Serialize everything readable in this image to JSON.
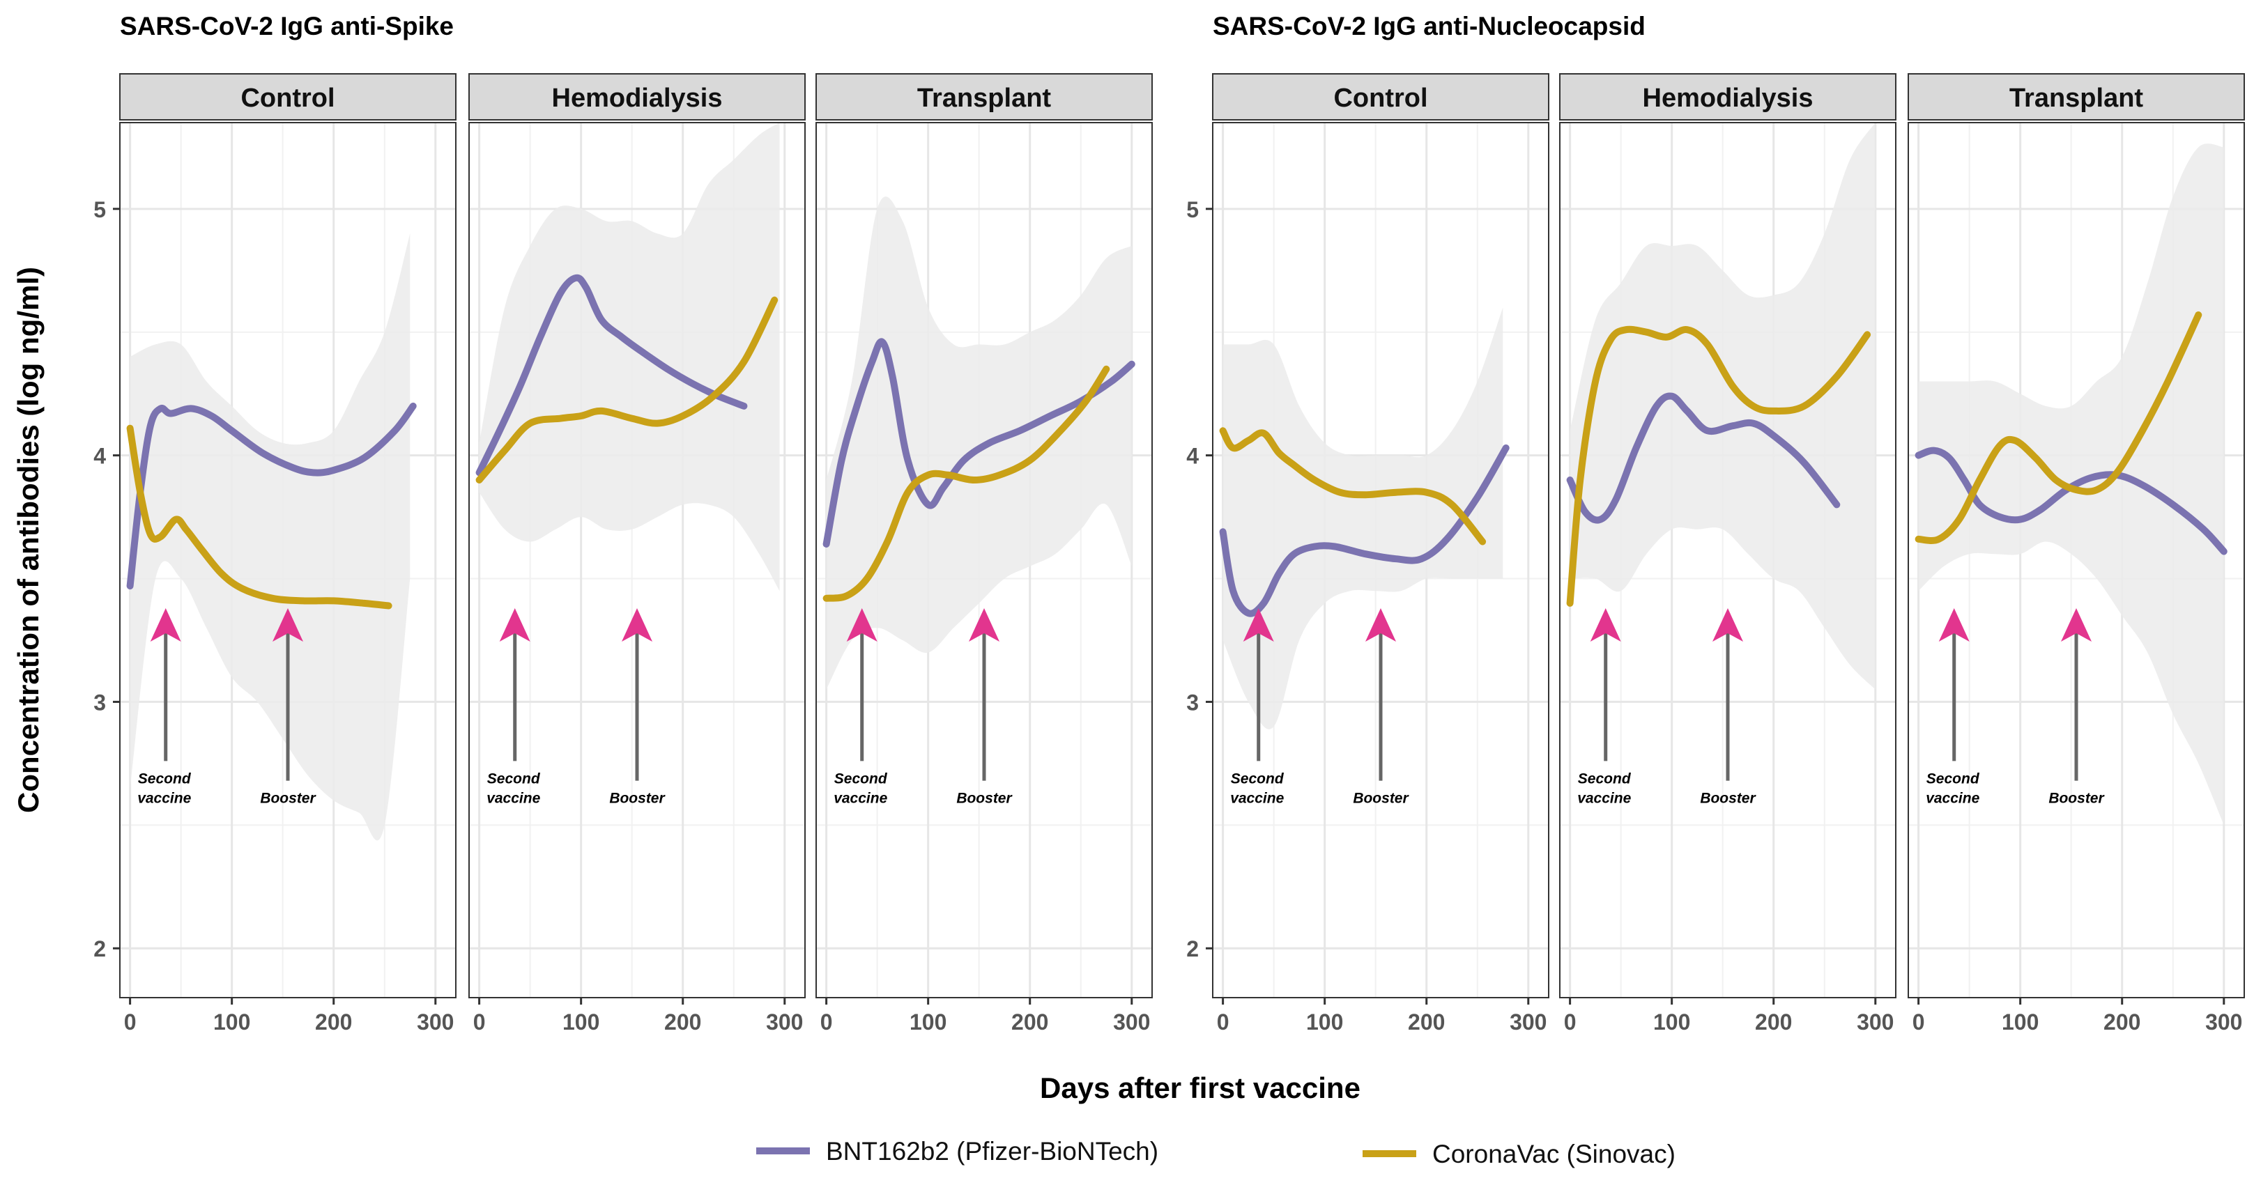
{
  "chart_data": [
    {
      "type": "line",
      "title": "SARS-CoV-2 IgG anti-Spike",
      "ylabel": "Concentration of antibodies (log ng/ml)",
      "xlabel": "Days after first vaccine",
      "xlim": [
        -10,
        320
      ],
      "ylim": [
        1.8,
        5.35
      ],
      "xticks": [
        0,
        100,
        200,
        300
      ],
      "yticks": [
        2,
        3,
        4,
        5
      ],
      "panels": [
        {
          "label": "Control",
          "band": {
            "x": [
              0,
              25,
              50,
              75,
              100,
              125,
              150,
              175,
              200,
              225,
              250,
              275
            ],
            "lo": [
              2.65,
              3.5,
              3.5,
              3.3,
              3.1,
              3.0,
              2.85,
              2.7,
              2.6,
              2.55,
              2.5,
              3.5
            ],
            "hi": [
              4.4,
              4.45,
              4.45,
              4.3,
              4.2,
              4.1,
              4.05,
              4.05,
              4.1,
              4.3,
              4.5,
              4.9
            ]
          },
          "series": [
            {
              "name": "BNT162b2 (Pfizer-BioNTech)",
              "x": [
                0,
                10,
                20,
                30,
                40,
                60,
                80,
                100,
                130,
                160,
                180,
                200,
                230,
                260,
                278
              ],
              "y": [
                3.47,
                3.85,
                4.12,
                4.19,
                4.17,
                4.19,
                4.16,
                4.1,
                4.01,
                3.95,
                3.93,
                3.94,
                3.99,
                4.1,
                4.2
              ]
            },
            {
              "name": "CoronaVac (Sinovac)",
              "x": [
                0,
                10,
                20,
                30,
                45,
                55,
                70,
                90,
                110,
                140,
                170,
                200,
                230,
                254
              ],
              "y": [
                4.11,
                3.85,
                3.68,
                3.67,
                3.74,
                3.7,
                3.62,
                3.52,
                3.46,
                3.42,
                3.41,
                3.41,
                3.4,
                3.39
              ]
            }
          ],
          "arrows": [
            {
              "x": 35,
              "label_line1": "Second",
              "label_line2": "vaccine"
            },
            {
              "x": 155,
              "label_line1": "Booster",
              "label_line2": ""
            }
          ]
        },
        {
          "label": "Hemodialysis",
          "band": {
            "x": [
              0,
              25,
              50,
              75,
              100,
              125,
              150,
              175,
              200,
              225,
              250,
              275,
              295
            ],
            "lo": [
              3.85,
              3.7,
              3.65,
              3.7,
              3.75,
              3.7,
              3.7,
              3.75,
              3.8,
              3.8,
              3.75,
              3.6,
              3.45
            ],
            "hi": [
              4.05,
              4.6,
              4.85,
              5.0,
              5.0,
              4.95,
              4.95,
              4.9,
              4.9,
              5.1,
              5.2,
              5.3,
              5.35
            ]
          },
          "series": [
            {
              "name": "BNT162b2 (Pfizer-BioNTech)",
              "x": [
                0,
                20,
                40,
                60,
                80,
                95,
                105,
                120,
                140,
                160,
                185,
                210,
                235,
                260
              ],
              "y": [
                3.93,
                4.1,
                4.28,
                4.48,
                4.66,
                4.72,
                4.68,
                4.55,
                4.48,
                4.42,
                4.35,
                4.29,
                4.24,
                4.2
              ]
            },
            {
              "name": "CoronaVac (Sinovac)",
              "x": [
                0,
                25,
                50,
                80,
                100,
                120,
                150,
                175,
                200,
                230,
                260,
                290
              ],
              "y": [
                3.9,
                4.02,
                4.13,
                4.15,
                4.16,
                4.18,
                4.15,
                4.13,
                4.16,
                4.24,
                4.38,
                4.63
              ]
            }
          ],
          "arrows": [
            {
              "x": 35,
              "label_line1": "Second",
              "label_line2": "vaccine"
            },
            {
              "x": 155,
              "label_line1": "Booster",
              "label_line2": ""
            }
          ]
        },
        {
          "label": "Transplant",
          "band": {
            "x": [
              0,
              25,
              50,
              75,
              100,
              125,
              150,
              175,
              200,
              225,
              250,
              275,
              300
            ],
            "lo": [
              3.05,
              3.25,
              3.3,
              3.25,
              3.2,
              3.3,
              3.4,
              3.5,
              3.55,
              3.6,
              3.7,
              3.8,
              3.55
            ],
            "hi": [
              3.9,
              4.3,
              5.0,
              4.95,
              4.6,
              4.45,
              4.45,
              4.45,
              4.5,
              4.55,
              4.65,
              4.8,
              4.85
            ]
          },
          "series": [
            {
              "name": "BNT162b2 (Pfizer-BioNTech)",
              "x": [
                0,
                15,
                30,
                45,
                55,
                65,
                80,
                100,
                115,
                135,
                160,
                190,
                220,
                250,
                280,
                300
              ],
              "y": [
                3.64,
                3.98,
                4.2,
                4.38,
                4.46,
                4.32,
                3.98,
                3.8,
                3.87,
                3.98,
                4.05,
                4.1,
                4.16,
                4.22,
                4.3,
                4.37
              ]
            },
            {
              "name": "CoronaVac (Sinovac)",
              "x": [
                0,
                20,
                40,
                60,
                80,
                100,
                120,
                145,
                170,
                200,
                230,
                255,
                275
              ],
              "y": [
                3.42,
                3.43,
                3.5,
                3.65,
                3.85,
                3.92,
                3.92,
                3.9,
                3.92,
                3.98,
                4.1,
                4.22,
                4.35
              ]
            }
          ],
          "arrows": [
            {
              "x": 35,
              "label_line1": "Second",
              "label_line2": "vaccine"
            },
            {
              "x": 155,
              "label_line1": "Booster",
              "label_line2": ""
            }
          ]
        }
      ]
    },
    {
      "type": "line",
      "title": "SARS-CoV-2 IgG anti-Nucleocapsid",
      "ylabel": "Concentration of antibodies (log ng/ml)",
      "xlabel": "Days after first vaccine",
      "xlim": [
        -10,
        320
      ],
      "ylim": [
        1.8,
        5.35
      ],
      "xticks": [
        0,
        100,
        200,
        300
      ],
      "yticks": [
        2,
        3,
        4,
        5
      ],
      "panels": [
        {
          "label": "Control",
          "band": {
            "x": [
              0,
              25,
              50,
              75,
              100,
              125,
              150,
              175,
              200,
              225,
              250,
              275
            ],
            "lo": [
              3.25,
              3.0,
              2.9,
              3.25,
              3.4,
              3.45,
              3.45,
              3.45,
              3.5,
              3.5,
              3.5,
              3.5
            ],
            "hi": [
              4.45,
              4.45,
              4.45,
              4.2,
              4.05,
              4.0,
              4.0,
              4.0,
              4.0,
              4.1,
              4.3,
              4.6
            ]
          },
          "series": [
            {
              "name": "BNT162b2 (Pfizer-BioNTech)",
              "x": [
                0,
                10,
                25,
                40,
                55,
                70,
                90,
                110,
                140,
                170,
                195,
                220,
                250,
                278
              ],
              "y": [
                3.69,
                3.45,
                3.36,
                3.4,
                3.52,
                3.6,
                3.63,
                3.63,
                3.6,
                3.58,
                3.58,
                3.66,
                3.83,
                4.03
              ]
            },
            {
              "name": "CoronaVac (Sinovac)",
              "x": [
                0,
                10,
                25,
                40,
                55,
                70,
                90,
                115,
                140,
                170,
                200,
                225,
                255
              ],
              "y": [
                4.1,
                4.03,
                4.06,
                4.09,
                4.01,
                3.96,
                3.9,
                3.85,
                3.84,
                3.85,
                3.85,
                3.8,
                3.65
              ]
            }
          ],
          "arrows": [
            {
              "x": 35,
              "label_line1": "Second",
              "label_line2": "vaccine"
            },
            {
              "x": 155,
              "label_line1": "Booster",
              "label_line2": ""
            }
          ]
        },
        {
          "label": "Hemodialysis",
          "band": {
            "x": [
              0,
              25,
              50,
              75,
              100,
              125,
              150,
              175,
              200,
              225,
              250,
              275,
              300
            ],
            "lo": [
              3.5,
              3.5,
              3.45,
              3.6,
              3.7,
              3.7,
              3.7,
              3.6,
              3.5,
              3.45,
              3.3,
              3.15,
              3.05
            ],
            "hi": [
              4.1,
              4.55,
              4.7,
              4.85,
              4.85,
              4.85,
              4.75,
              4.65,
              4.65,
              4.7,
              4.9,
              5.2,
              5.35
            ]
          },
          "series": [
            {
              "name": "BNT162b2 (Pfizer-BioNTech)",
              "x": [
                0,
                15,
                30,
                45,
                65,
                85,
                100,
                115,
                135,
                160,
                180,
                200,
                230,
                262
              ],
              "y": [
                3.9,
                3.77,
                3.74,
                3.82,
                4.03,
                4.2,
                4.24,
                4.18,
                4.1,
                4.12,
                4.13,
                4.08,
                3.97,
                3.8
              ]
            },
            {
              "name": "CoronaVac (Sinovac)",
              "x": [
                0,
                10,
                25,
                40,
                55,
                75,
                95,
                115,
                135,
                160,
                180,
                200,
                230,
                262,
                292
              ],
              "y": [
                3.4,
                3.9,
                4.3,
                4.47,
                4.51,
                4.5,
                4.48,
                4.51,
                4.45,
                4.28,
                4.2,
                4.18,
                4.2,
                4.32,
                4.49
              ]
            }
          ],
          "arrows": [
            {
              "x": 35,
              "label_line1": "Second",
              "label_line2": "vaccine"
            },
            {
              "x": 155,
              "label_line1": "Booster",
              "label_line2": ""
            }
          ]
        },
        {
          "label": "Transplant",
          "band": {
            "x": [
              0,
              25,
              50,
              75,
              100,
              125,
              150,
              175,
              200,
              225,
              250,
              275,
              300
            ],
            "lo": [
              3.45,
              3.55,
              3.6,
              3.6,
              3.6,
              3.65,
              3.6,
              3.5,
              3.35,
              3.2,
              2.95,
              2.75,
              2.5
            ],
            "hi": [
              4.3,
              4.3,
              4.3,
              4.3,
              4.25,
              4.2,
              4.2,
              4.3,
              4.4,
              4.7,
              5.05,
              5.25,
              5.25
            ]
          },
          "series": [
            {
              "name": "BNT162b2 (Pfizer-BioNTech)",
              "x": [
                0,
                15,
                30,
                45,
                60,
                80,
                100,
                120,
                145,
                170,
                195,
                220,
                250,
                280,
                300
              ],
              "y": [
                4.0,
                4.02,
                3.99,
                3.9,
                3.8,
                3.75,
                3.74,
                3.78,
                3.86,
                3.91,
                3.92,
                3.88,
                3.8,
                3.7,
                3.61
              ]
            },
            {
              "name": "CoronaVac (Sinovac)",
              "x": [
                0,
                20,
                40,
                60,
                80,
                95,
                115,
                135,
                155,
                175,
                195,
                220,
                245,
                275
              ],
              "y": [
                3.66,
                3.66,
                3.74,
                3.9,
                4.04,
                4.06,
                3.99,
                3.9,
                3.86,
                3.86,
                3.93,
                4.1,
                4.3,
                4.57
              ]
            }
          ],
          "arrows": [
            {
              "x": 35,
              "label_line1": "Second",
              "label_line2": "vaccine"
            },
            {
              "x": 155,
              "label_line1": "Booster",
              "label_line2": ""
            }
          ]
        }
      ]
    }
  ],
  "legend": [
    {
      "label": "BNT162b2 (Pfizer-BioNTech)",
      "color": "#7b73b0"
    },
    {
      "label": "CoronaVac (Sinovac)",
      "color": "#c9a117"
    }
  ],
  "colors": {
    "band": "#ebebeb",
    "strip_fill": "#d9d9d9",
    "grid": "#e6e6e6",
    "arrow_head": "#e2358e",
    "arrow_shaft": "#666666"
  }
}
